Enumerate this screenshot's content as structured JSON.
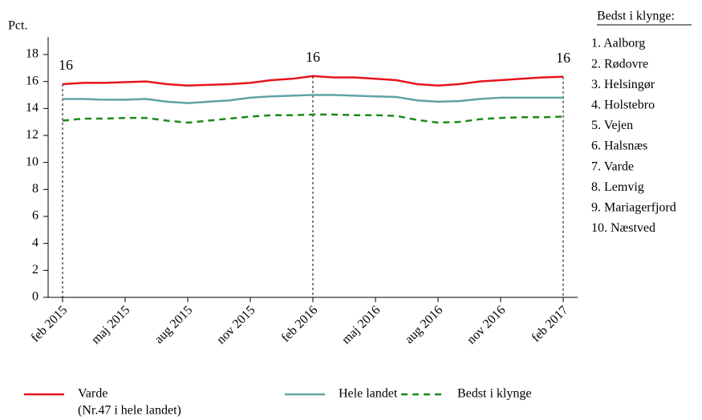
{
  "chart_data": {
    "type": "line",
    "y_label": "Pct.",
    "categories": [
      "feb 2015",
      null,
      null,
      "maj 2015",
      null,
      null,
      "aug 2015",
      null,
      null,
      "nov 2015",
      null,
      null,
      "feb 2016",
      null,
      null,
      "maj 2016",
      null,
      null,
      "aug 2016",
      null,
      null,
      "nov 2016",
      null,
      null,
      "feb 2017"
    ],
    "series": [
      {
        "name": "Varde",
        "legend_note": "(Nr.47 i hele landet)",
        "color": "#e8141b",
        "dashed": false,
        "values": [
          15.8,
          15.9,
          15.9,
          15.95,
          16.0,
          15.8,
          15.7,
          15.75,
          15.8,
          15.9,
          16.1,
          16.2,
          16.4,
          16.3,
          16.3,
          16.2,
          16.1,
          15.8,
          15.7,
          15.8,
          16.0,
          16.1,
          16.2,
          16.3,
          16.35
        ],
        "value_labels": [
          "16",
          null,
          null,
          null,
          null,
          null,
          null,
          null,
          null,
          null,
          null,
          null,
          "16",
          null,
          null,
          null,
          null,
          null,
          null,
          null,
          null,
          null,
          null,
          null,
          "16"
        ]
      },
      {
        "name": "Hele landet",
        "color": "#5fa3a8",
        "dashed": false,
        "values": [
          14.7,
          14.7,
          14.65,
          14.65,
          14.7,
          14.5,
          14.4,
          14.5,
          14.6,
          14.8,
          14.9,
          14.95,
          15.0,
          15.0,
          14.95,
          14.9,
          14.85,
          14.6,
          14.5,
          14.55,
          14.7,
          14.8,
          14.8,
          14.8,
          14.8
        ]
      },
      {
        "name": "Bedst i klynge",
        "color": "#1a8a1a",
        "dashed": true,
        "values": [
          13.1,
          13.25,
          13.25,
          13.3,
          13.3,
          13.1,
          12.95,
          13.1,
          13.25,
          13.4,
          13.5,
          13.5,
          13.55,
          13.55,
          13.5,
          13.5,
          13.45,
          13.15,
          12.95,
          13.0,
          13.2,
          13.3,
          13.35,
          13.35,
          13.4
        ]
      }
    ],
    "ylim": [
      0,
      19.3
    ],
    "yticks": [
      0,
      2,
      4,
      6,
      8,
      10,
      12,
      14,
      16,
      18
    ],
    "grid": false,
    "side_list": {
      "title": "Bedst i klynge:",
      "items": [
        "1. Aalborg",
        "2. Rødovre",
        "3. Helsingør",
        "4. Holstebro",
        "5. Vejen",
        "6. Halsnæs",
        "7. Varde",
        "8. Lemvig",
        "9. Mariagerfjord",
        "10. Næstved"
      ]
    }
  }
}
